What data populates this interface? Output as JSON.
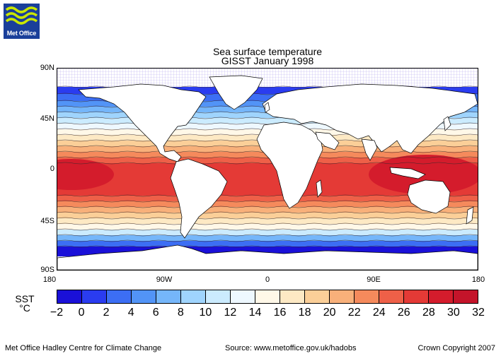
{
  "logo": {
    "text": "Met Office",
    "bg": "#1a3f9a",
    "wave": "#c9e600"
  },
  "title": {
    "line1": "Sea surface temperature",
    "line2": "GISST January 1998"
  },
  "lat_labels": [
    "90N",
    "45N",
    "0",
    "45S",
    "90S"
  ],
  "lon_labels": [
    "180",
    "90W",
    "0",
    "90E",
    "180"
  ],
  "colorbar": {
    "title_line1": "SST",
    "title_line2": "°C",
    "ticks": [
      "−2",
      "0",
      "2",
      "4",
      "6",
      "8",
      "10",
      "12",
      "14",
      "16",
      "18",
      "20",
      "22",
      "24",
      "26",
      "28",
      "30",
      "32"
    ],
    "colors": [
      "#1a10d8",
      "#2a3cf0",
      "#3c6ef4",
      "#5294f7",
      "#75b6fa",
      "#9fd4fd",
      "#cbebfe",
      "#eef8ff",
      "#fff8e8",
      "#fde9c4",
      "#fbcf98",
      "#f8b07a",
      "#f58a5c",
      "#ee6048",
      "#e43a36",
      "#d41c2c",
      "#c4142a"
    ]
  },
  "colors": {
    "land": "#ffffff",
    "ice": "#d8d0f8",
    "contour": "#3a2a2a",
    "coast": "#000000"
  },
  "footer": {
    "left": "Met Office Hadley Centre for Climate Change",
    "center": "Source: www.metoffice.gov.uk/hadobs",
    "right": "Crown Copyright 2007"
  }
}
